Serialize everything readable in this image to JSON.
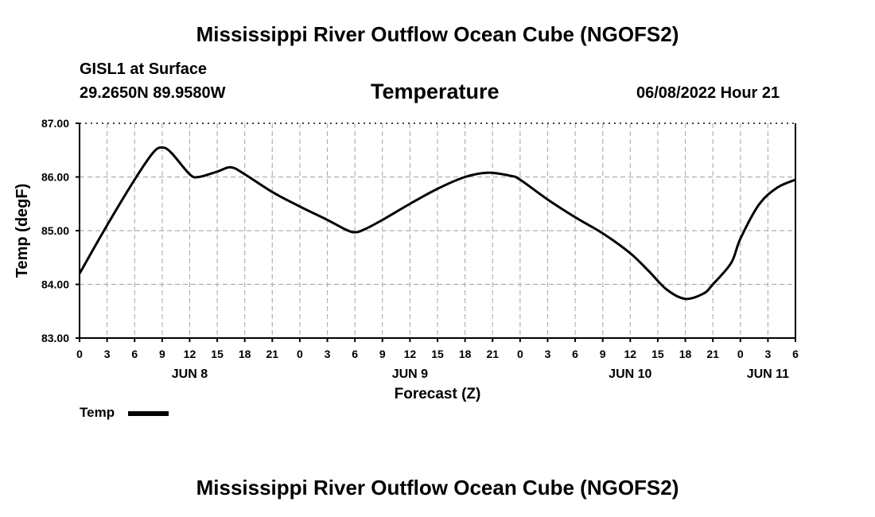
{
  "page_title": "Mississippi River Outflow Ocean Cube (NGOFS2)",
  "station": "GISL1 at Surface",
  "coords": "29.2650N  89.9580W",
  "variable_title": "Temperature",
  "datetime": "06/08/2022 Hour 21",
  "footer_title": "Mississippi River Outflow Ocean Cube (NGOFS2)",
  "legend": {
    "label": "Temp"
  },
  "chart_data": {
    "type": "line",
    "title": "Temperature",
    "xlabel": "Forecast (Z)",
    "ylabel": "Temp (degF)",
    "xlim": [
      0,
      78
    ],
    "ylim": [
      83,
      87
    ],
    "grid": true,
    "y_ticks": [
      83,
      84,
      85,
      86,
      87
    ],
    "y_tick_labels": [
      "83.00",
      "84.00",
      "85.00",
      "86.00",
      "87.00"
    ],
    "x_ticks": [
      0,
      3,
      6,
      9,
      12,
      15,
      18,
      21,
      24,
      27,
      30,
      33,
      36,
      39,
      42,
      45,
      48,
      51,
      54,
      57,
      60,
      63,
      66,
      69,
      72,
      75,
      78
    ],
    "x_tick_labels": [
      "0",
      "3",
      "6",
      "9",
      "12",
      "15",
      "18",
      "21",
      "0",
      "3",
      "6",
      "9",
      "12",
      "15",
      "18",
      "21",
      "0",
      "3",
      "6",
      "9",
      "12",
      "15",
      "18",
      "21",
      "0",
      "3",
      "6"
    ],
    "day_labels": [
      {
        "x": 12,
        "label": "JUN 8"
      },
      {
        "x": 36,
        "label": "JUN 9"
      },
      {
        "x": 60,
        "label": "JUN 10"
      },
      {
        "x": 75,
        "label": "JUN 11"
      }
    ],
    "series": [
      {
        "name": "Temp",
        "x": [
          0,
          3,
          6,
          8,
          9,
          10,
          12,
          13,
          15,
          16.5,
          18,
          21,
          24,
          27,
          29,
          30,
          31,
          33,
          36,
          39,
          42,
          44.5,
          47,
          48,
          51,
          54,
          57,
          60,
          62,
          64,
          66,
          68,
          69,
          71,
          72,
          74,
          76,
          78
        ],
        "values": [
          84.2,
          85.1,
          85.95,
          86.45,
          86.55,
          86.45,
          86.05,
          86.0,
          86.1,
          86.18,
          86.05,
          85.72,
          85.45,
          85.2,
          85.02,
          84.97,
          85.02,
          85.2,
          85.5,
          85.78,
          86.0,
          86.08,
          86.02,
          85.95,
          85.58,
          85.25,
          84.95,
          84.58,
          84.25,
          83.9,
          83.73,
          83.83,
          84.0,
          84.4,
          84.85,
          85.48,
          85.8,
          85.95
        ]
      }
    ]
  }
}
